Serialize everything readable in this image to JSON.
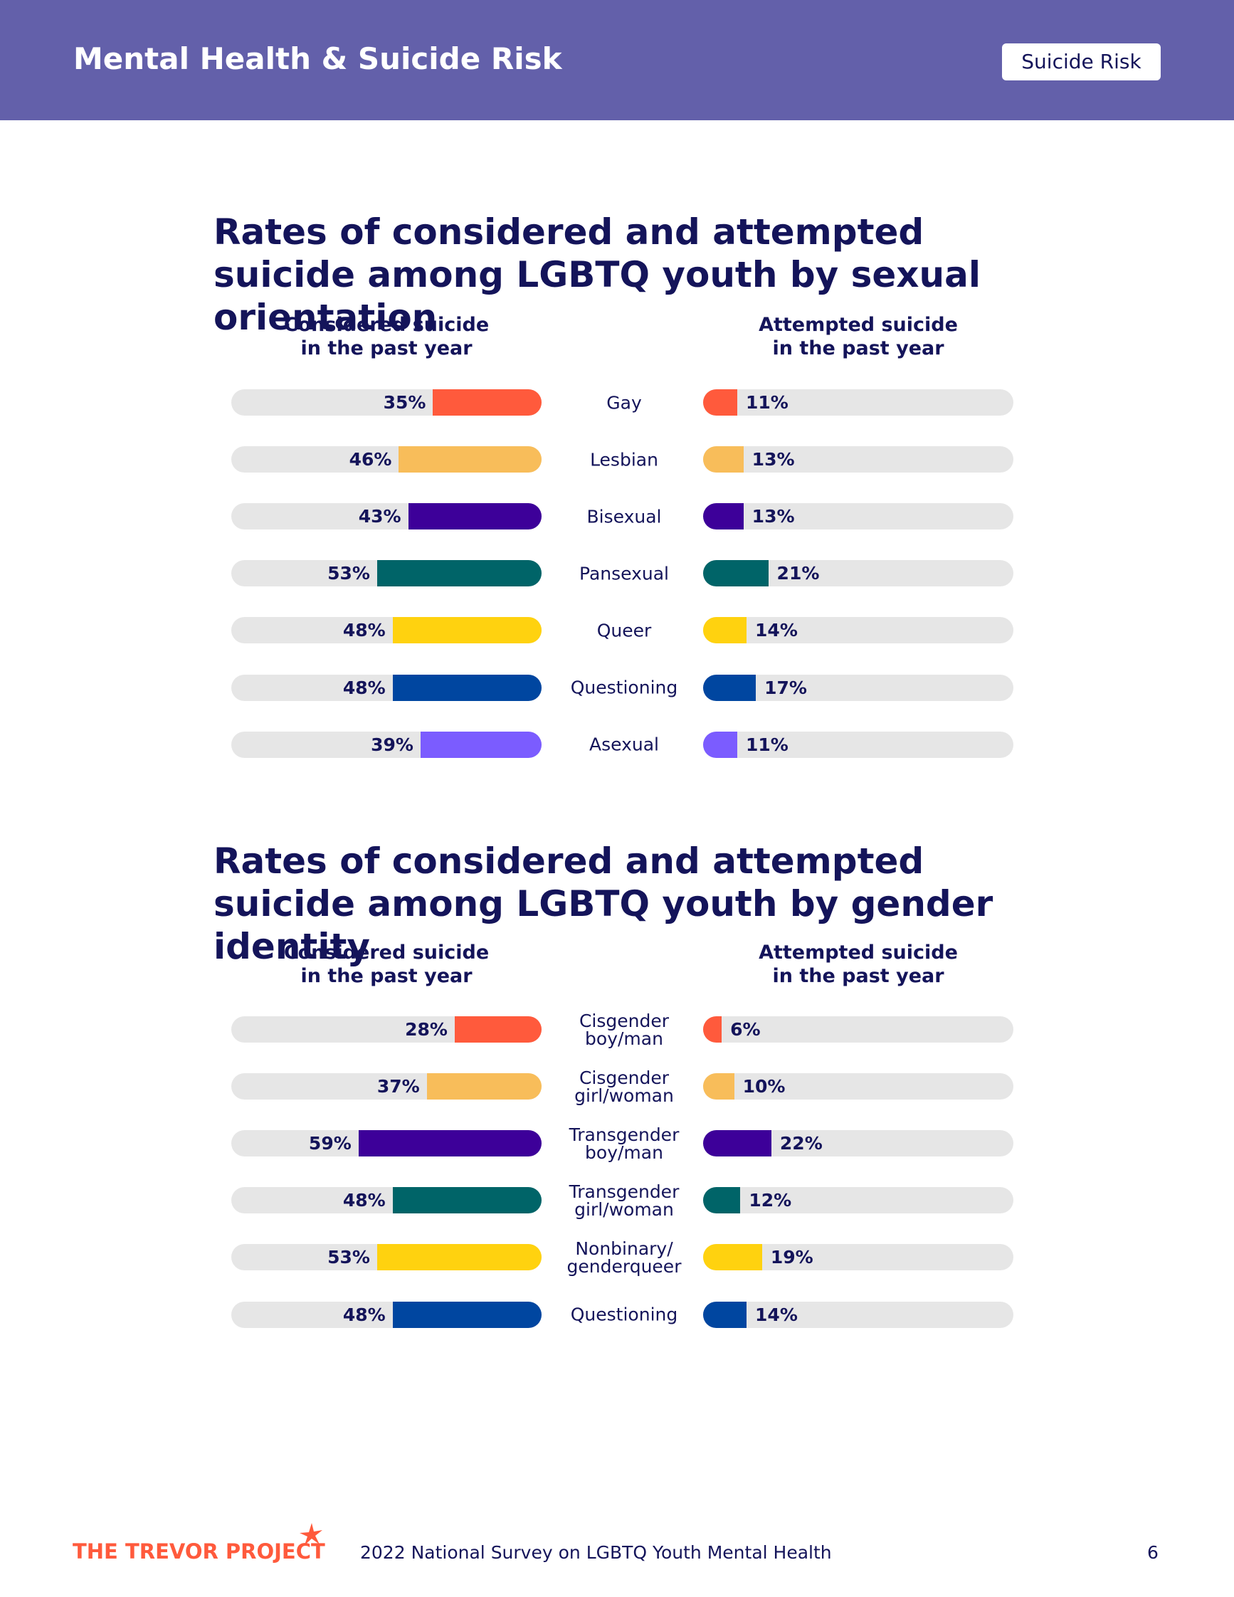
{
  "header": {
    "title": "Mental Health & Suicide Risk",
    "tag": "Suicide Risk"
  },
  "chart_data": [
    {
      "type": "bar",
      "title": "Rates of considered and attempted suicide among LGBTQ youth by sexual orientation",
      "categories": [
        "Gay",
        "Lesbian",
        "Bisexual",
        "Pansexual",
        "Queer",
        "Questioning",
        "Asexual"
      ],
      "colors": [
        "#ff5a3c",
        "#f8bd5a",
        "#3d0099",
        "#006468",
        "#ffd20f",
        "#0046a0",
        "#7b5cff"
      ],
      "xlim": [
        0,
        100
      ],
      "series": [
        {
          "name": "Considered suicide in the past year",
          "values": [
            35,
            46,
            43,
            53,
            48,
            48,
            39
          ],
          "value_labels": [
            "35%",
            "46%",
            "43%",
            "53%",
            "48%",
            "48%",
            "39%"
          ]
        },
        {
          "name": "Attempted suicide in the past year",
          "values": [
            11,
            13,
            13,
            21,
            14,
            17,
            11
          ],
          "value_labels": [
            "11%",
            "13%",
            "13%",
            "21%",
            "14%",
            "17%",
            "11%"
          ]
        }
      ]
    },
    {
      "type": "bar",
      "title": "Rates of considered and attempted suicide among LGBTQ youth by gender identity",
      "categories": [
        "Cisgender boy/man",
        "Cisgender girl/woman",
        "Transgender boy/man",
        "Transgender girl/woman",
        "Nonbinary/ genderqueer",
        "Questioning"
      ],
      "colors": [
        "#ff5a3c",
        "#f8bd5a",
        "#3d0099",
        "#006468",
        "#ffd20f",
        "#0046a0"
      ],
      "xlim": [
        0,
        100
      ],
      "series": [
        {
          "name": "Considered suicide in the past year",
          "values": [
            28,
            37,
            59,
            48,
            53,
            48
          ],
          "value_labels": [
            "28%",
            "37%",
            "59%",
            "48%",
            "53%",
            "48%"
          ]
        },
        {
          "name": "Attempted suicide in the past year",
          "values": [
            6,
            10,
            22,
            12,
            19,
            14
          ],
          "value_labels": [
            "6%",
            "10%",
            "22%",
            "12%",
            "19%",
            "14%"
          ]
        }
      ]
    }
  ],
  "footer": {
    "logo": "THE TREVOR PROJECT",
    "source": "2022 National Survey on LGBTQ Youth Mental Health",
    "page": "6"
  }
}
